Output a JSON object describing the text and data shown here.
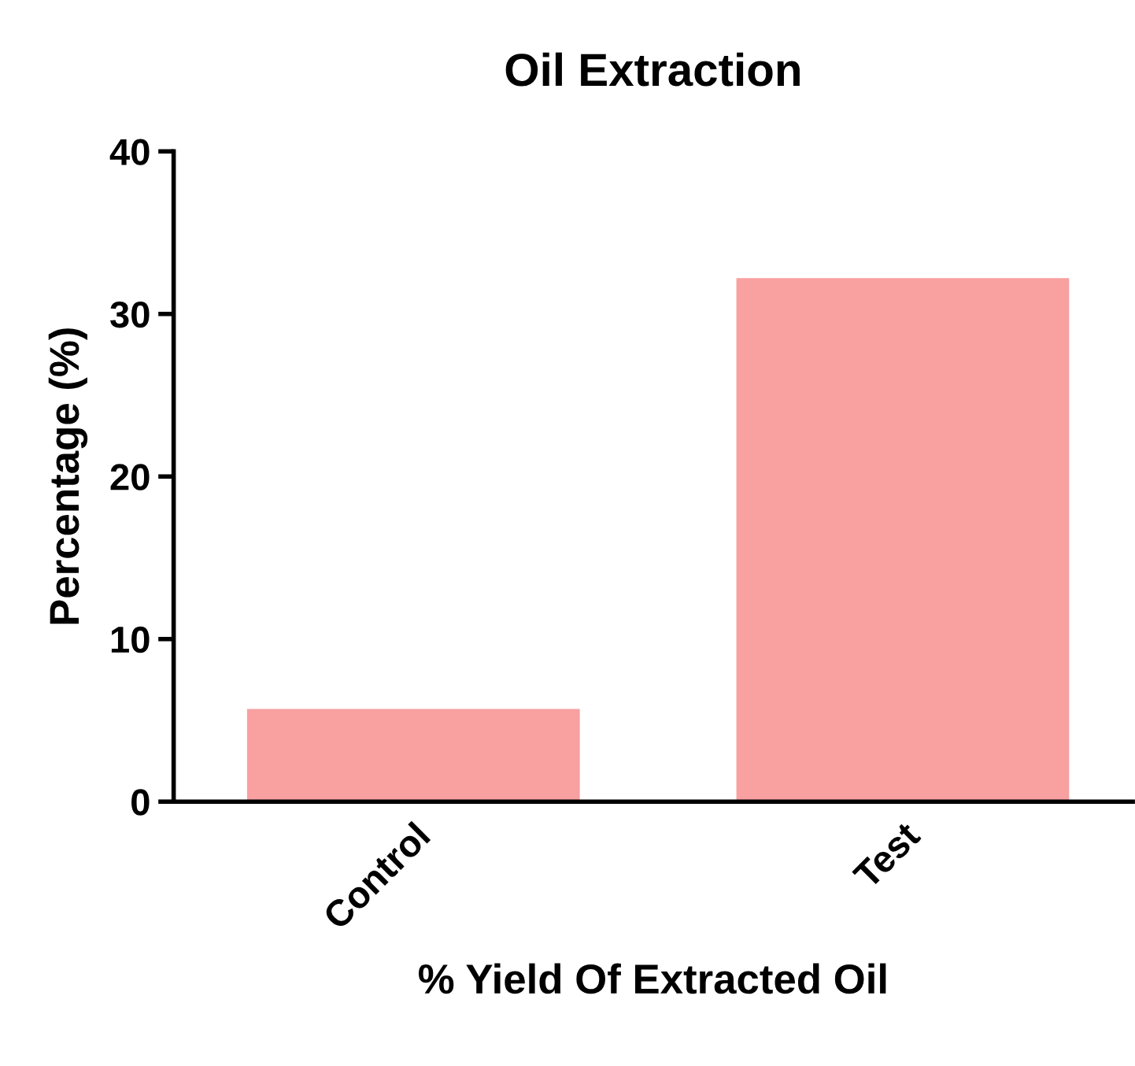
{
  "chart_data": {
    "type": "bar",
    "title": "Oil Extraction",
    "xlabel": "% Yield Of Extracted Oil",
    "ylabel": "Percentage (%)",
    "categories": [
      "Control",
      "Test"
    ],
    "values": [
      5.7,
      32.2
    ],
    "color": "#f9a0a0",
    "ylim": [
      0,
      40
    ],
    "yticks": [
      0,
      10,
      20,
      30,
      40
    ],
    "grid": false,
    "legend": false
  }
}
